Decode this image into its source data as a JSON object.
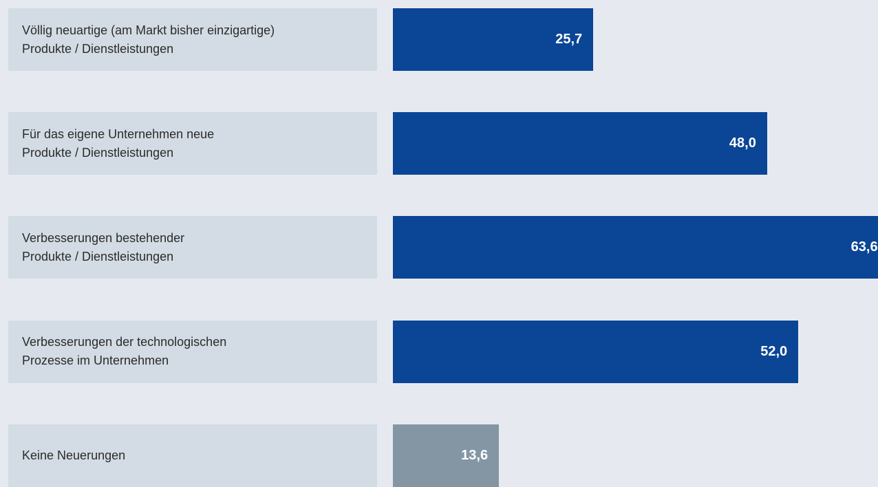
{
  "chart_data": {
    "type": "bar",
    "orientation": "horizontal",
    "categories": [
      "Völlig neuartige (am Markt bisher einzigartige)\nProdukte / Dienstleistungen",
      "Für das eigene Unternehmen neue\nProdukte / Dienstleistungen",
      "Verbesserungen bestehender\nProdukte / Dienstleistungen",
      "Verbesserungen der technologischen\nProzesse im Unternehmen",
      "Keine Neuerungen"
    ],
    "values": [
      25.7,
      48.0,
      63.6,
      52.0,
      13.6
    ],
    "value_labels": [
      "25,7",
      "48,0",
      "63,6",
      "52,0",
      "13,6"
    ],
    "colors": [
      "#0b4596",
      "#0b4596",
      "#0b4596",
      "#0b4596",
      "#8496a4"
    ]
  }
}
